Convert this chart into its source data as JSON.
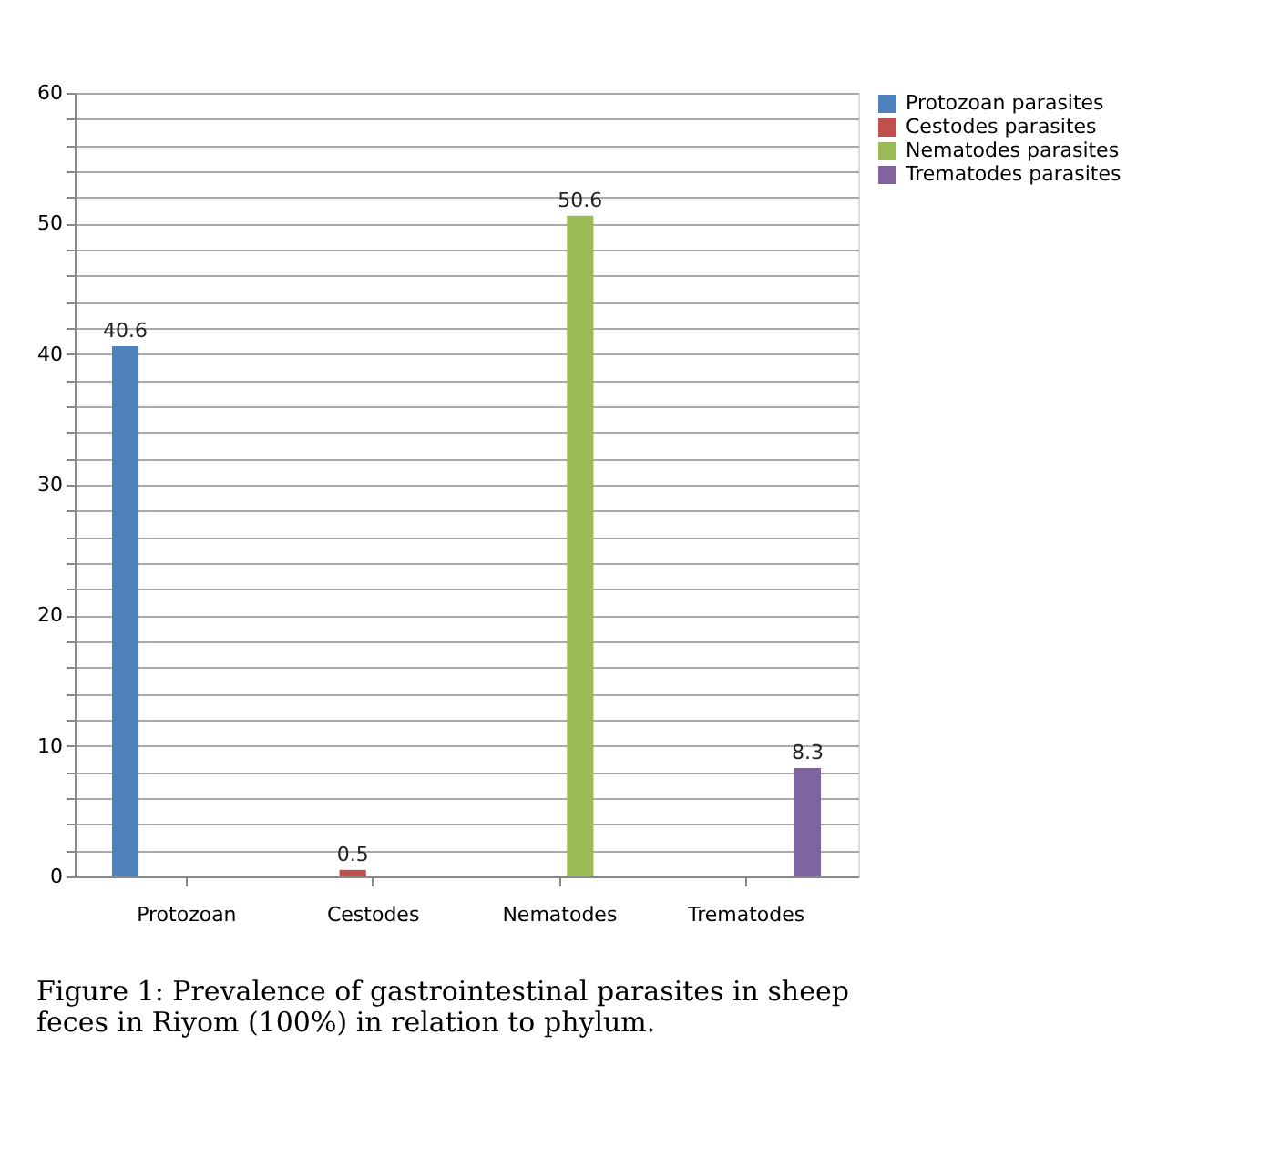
{
  "chart_data": {
    "type": "bar",
    "title": "Figure 1: Prevalence of gastrointestinal parasites in sheep feces in Riyom (100%) in relation to phylum.",
    "categories": [
      "Protozoan",
      "Cestodes",
      "Nematodes",
      "Trematodes"
    ],
    "series": [
      {
        "name": "Protozoan parasites",
        "color": "#4f81bd",
        "values": [
          40.6,
          null,
          null,
          null
        ]
      },
      {
        "name": "Cestodes parasites",
        "color": "#c0504d",
        "values": [
          null,
          0.5,
          null,
          null
        ]
      },
      {
        "name": "Nematodes parasites",
        "color": "#9bbb59",
        "values": [
          null,
          null,
          50.6,
          null
        ]
      },
      {
        "name": "Trematodes parasites",
        "color": "#8064a2",
        "values": [
          null,
          null,
          null,
          8.3
        ]
      }
    ],
    "ylim": [
      0,
      60
    ],
    "yticks": [
      0,
      {
        "value": 2,
        "label": null
      },
      {
        "value": 4,
        "label": null
      },
      {
        "value": 6,
        "label": null
      },
      {
        "value": 8,
        "label": null
      },
      10,
      {
        "value": 12,
        "label": null
      },
      {
        "value": 14,
        "label": null
      },
      {
        "value": 16,
        "label": null
      },
      {
        "value": 18,
        "label": null
      },
      20,
      {
        "value": 22,
        "label": null
      },
      {
        "value": 24,
        "label": null
      },
      {
        "value": 26,
        "label": null
      },
      {
        "value": 28,
        "label": null
      },
      30,
      {
        "value": 32,
        "label": null
      },
      {
        "value": 34,
        "label": null
      },
      {
        "value": 36,
        "label": null
      },
      {
        "value": 38,
        "label": null
      },
      40,
      {
        "value": 42,
        "label": null
      },
      {
        "value": 44,
        "label": null
      },
      {
        "value": 46,
        "label": null
      },
      {
        "value": 48,
        "label": null
      },
      50,
      {
        "value": 52,
        "label": null
      },
      {
        "value": 54,
        "label": null
      },
      {
        "value": 56,
        "label": null
      },
      {
        "value": 58,
        "label": null
      },
      60
    ],
    "grid": "y",
    "legend": "right",
    "data_labels": true
  }
}
